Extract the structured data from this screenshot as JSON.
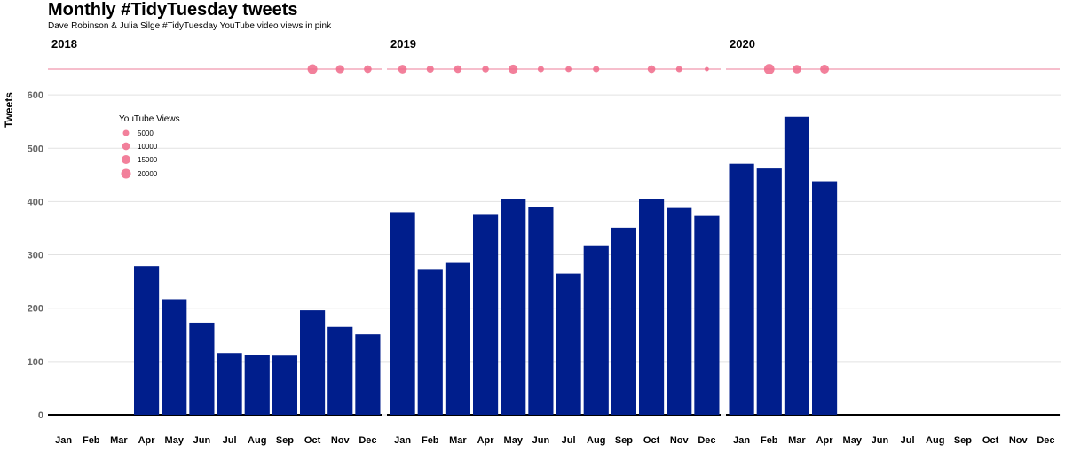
{
  "chart_data": {
    "type": "bar",
    "title": "Monthly #TidyTuesday tweets",
    "subtitle": "Dave Robinson & Julia Silge #TidyTuesday YouTube video views in pink",
    "ylabel": "Tweets",
    "xlabel": "",
    "ylim": [
      0,
      650
    ],
    "yticks": [
      0,
      100,
      200,
      300,
      400,
      500,
      600
    ],
    "grid": true,
    "categories": [
      "Jan",
      "Feb",
      "Mar",
      "Apr",
      "May",
      "Jun",
      "Jul",
      "Aug",
      "Sep",
      "Oct",
      "Nov",
      "Dec"
    ],
    "bar_color": "#001E8C",
    "point_color": "#F06A8A",
    "legend": {
      "title": "YouTube Views",
      "placement": "top-left",
      "entries": [
        {
          "label": "5000",
          "value": 5000
        },
        {
          "label": "10000",
          "value": 10000
        },
        {
          "label": "15000",
          "value": 15000
        },
        {
          "label": "20000",
          "value": 20000
        }
      ]
    },
    "panels": [
      {
        "label": "2018",
        "series": [
          {
            "name": "Tweets",
            "values": [
              null,
              null,
              null,
              279,
              217,
              173,
              116,
              113,
              111,
              196,
              165,
              151
            ]
          },
          {
            "name": "YouTube Views",
            "values": [
              null,
              null,
              null,
              null,
              null,
              null,
              null,
              null,
              null,
              20000,
              12500,
              10000
            ]
          }
        ]
      },
      {
        "label": "2019",
        "series": [
          {
            "name": "Tweets",
            "values": [
              380,
              272,
              285,
              375,
              404,
              390,
              265,
              318,
              351,
              404,
              388,
              373
            ]
          },
          {
            "name": "YouTube Views",
            "values": [
              14000,
              8000,
              10000,
              6500,
              16000,
              5000,
              4500,
              5500,
              null,
              10000,
              5000,
              1000
            ]
          }
        ]
      },
      {
        "label": "2020",
        "series": [
          {
            "name": "Tweets",
            "values": [
              471,
              462,
              559,
              438,
              null,
              null,
              null,
              null,
              null,
              null,
              null,
              null
            ]
          },
          {
            "name": "YouTube Views",
            "values": [
              null,
              24000,
              13500,
              15000,
              null,
              null,
              null,
              null,
              null,
              null,
              null,
              null
            ]
          }
        ]
      }
    ]
  }
}
